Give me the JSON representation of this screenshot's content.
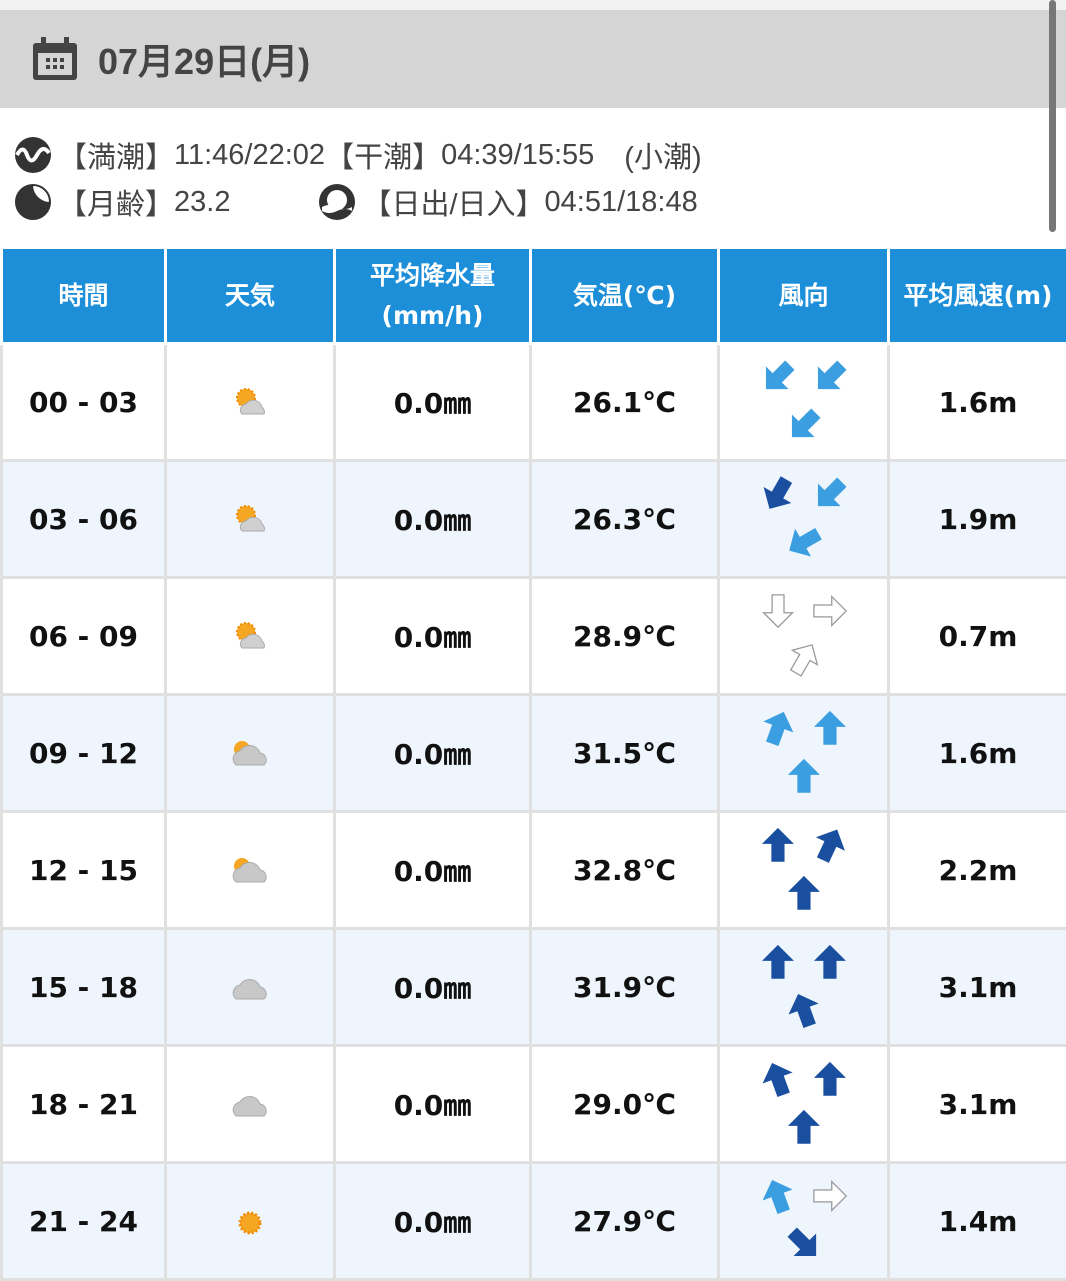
{
  "header": {
    "date": "07月29日(月)",
    "icon": "calendar-icon"
  },
  "tide": {
    "high_label": "【満潮】",
    "high": "11:46/22:02",
    "low_label": "【干潮】",
    "low": "04:39/15:55",
    "type": "(小潮)",
    "icon": "tide-wave-icon"
  },
  "moon": {
    "label": "【月齢】",
    "value": "23.2",
    "icon": "moon-phase-icon"
  },
  "sun": {
    "label": "【日出/日入】",
    "value": "04:51/18:48",
    "icon": "sunrise-icon"
  },
  "columns": [
    "時間",
    "天気",
    "平均降水量(mm/h)",
    "気温(℃)",
    "風向",
    "平均風速(m)"
  ],
  "colors": {
    "header_bg": "#1d8fd9",
    "light": "#3a9ee0",
    "dark": "#1a4fa0",
    "white": "#ffffff"
  },
  "rows": [
    {
      "time": "00 - 03",
      "weather": "sun-cloud",
      "rain": "0.0㎜",
      "temp": "26.1℃",
      "wind": [
        [
          225,
          "light"
        ],
        [
          225,
          "light"
        ],
        [
          225,
          "light"
        ]
      ],
      "speed": "1.6m"
    },
    {
      "time": "03 - 06",
      "weather": "sun-cloud",
      "rain": "0.0㎜",
      "temp": "26.3℃",
      "wind": [
        [
          210,
          "dark"
        ],
        [
          225,
          "light"
        ],
        [
          240,
          "light"
        ]
      ],
      "speed": "1.9m"
    },
    {
      "time": "06 - 09",
      "weather": "sun-cloud",
      "rain": "0.0㎜",
      "temp": "28.9℃",
      "wind": [
        [
          180,
          "white"
        ],
        [
          90,
          "white"
        ],
        [
          30,
          "white"
        ]
      ],
      "speed": "0.7m"
    },
    {
      "time": "09 - 12",
      "weather": "cloud-sun",
      "rain": "0.0㎜",
      "temp": "31.5℃",
      "wind": [
        [
          20,
          "light"
        ],
        [
          0,
          "light"
        ],
        [
          0,
          "light"
        ]
      ],
      "speed": "1.6m"
    },
    {
      "time": "12 - 15",
      "weather": "cloud-sun",
      "rain": "0.0㎜",
      "temp": "32.8℃",
      "wind": [
        [
          0,
          "dark"
        ],
        [
          25,
          "dark"
        ],
        [
          0,
          "dark"
        ]
      ],
      "speed": "2.2m"
    },
    {
      "time": "15 - 18",
      "weather": "cloud",
      "rain": "0.0㎜",
      "temp": "31.9℃",
      "wind": [
        [
          0,
          "dark"
        ],
        [
          0,
          "dark"
        ],
        [
          -20,
          "dark"
        ]
      ],
      "speed": "3.1m"
    },
    {
      "time": "18 - 21",
      "weather": "cloud",
      "rain": "0.0㎜",
      "temp": "29.0℃",
      "wind": [
        [
          -20,
          "dark"
        ],
        [
          0,
          "dark"
        ],
        [
          0,
          "dark"
        ]
      ],
      "speed": "3.1m"
    },
    {
      "time": "21 - 24",
      "weather": "sun",
      "rain": "0.0㎜",
      "temp": "27.9℃",
      "wind": [
        [
          -20,
          "light"
        ],
        [
          90,
          "white"
        ],
        [
          135,
          "dark"
        ]
      ],
      "speed": "1.4m"
    }
  ]
}
